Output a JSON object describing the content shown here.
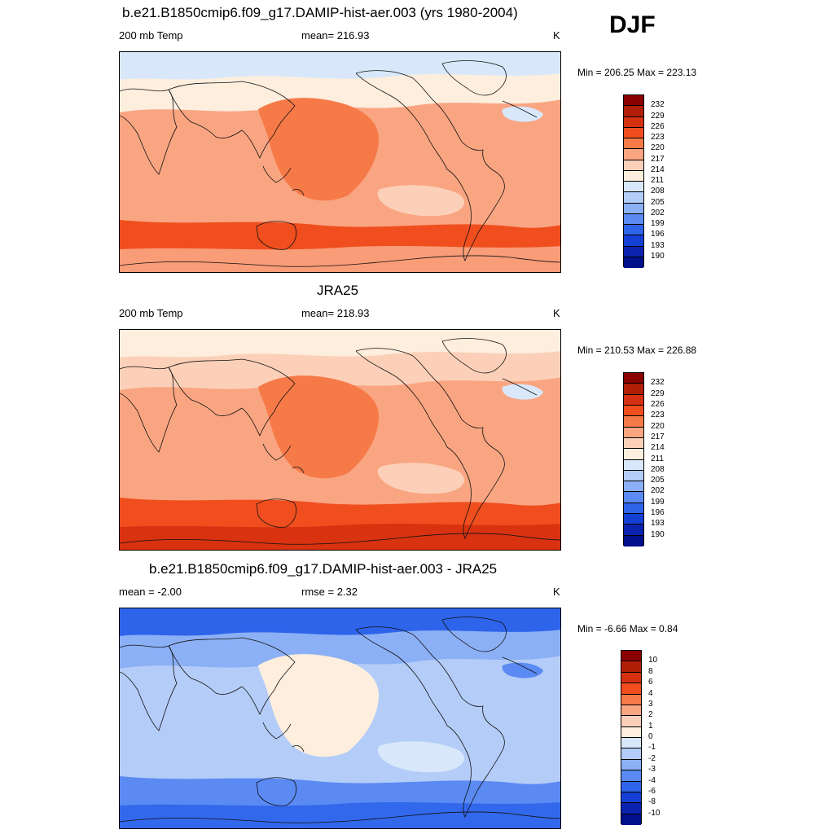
{
  "season": "DJF",
  "panels": [
    {
      "id": "model",
      "title": "b.e21.B1850cmip6.f09_g17.DAMIP-hist-aer.003 (yrs 1980-2004)",
      "left_label": "200 mb Temp",
      "center_label": "mean= 216.93",
      "units": "K",
      "minmax": "Min = 206.25 Max = 223.13",
      "colorbar": {
        "labels": [
          "232",
          "229",
          "226",
          "223",
          "220",
          "217",
          "214",
          "211",
          "208",
          "205",
          "202",
          "199",
          "196",
          "193",
          "190"
        ],
        "colors": [
          "#8b0000",
          "#b01e08",
          "#d53010",
          "#f04e1e",
          "#f67a48",
          "#f9a582",
          "#fcd0b8",
          "#fdeede",
          "#d8e8fa",
          "#b4ccf8",
          "#8cb0f6",
          "#5a8af2",
          "#2e64ea",
          "#1440d6",
          "#0a22ae",
          "#00108a"
        ]
      },
      "fills": {
        "polar_north": "#d8e8fa",
        "high_lat": "#fdeede",
        "mid": "#f9a582",
        "warm": "#f67a48",
        "south_band": "#f04e1e",
        "deep_south": "#f9a582",
        "cool": "#fcd0b8",
        "cold_spot": "#d8e8fa"
      }
    },
    {
      "id": "obs",
      "title": "JRA25",
      "left_label": "200 mb Temp",
      "center_label": "mean= 218.93",
      "units": "K",
      "minmax": "Min = 210.53 Max = 226.88",
      "colorbar": {
        "labels": [
          "232",
          "229",
          "226",
          "223",
          "220",
          "217",
          "214",
          "211",
          "208",
          "205",
          "202",
          "199",
          "196",
          "193",
          "190"
        ],
        "colors": [
          "#8b0000",
          "#b01e08",
          "#d53010",
          "#f04e1e",
          "#f67a48",
          "#f9a582",
          "#fcd0b8",
          "#fdeede",
          "#d8e8fa",
          "#b4ccf8",
          "#8cb0f6",
          "#5a8af2",
          "#2e64ea",
          "#1440d6",
          "#0a22ae",
          "#00108a"
        ]
      },
      "fills": {
        "polar_north": "#fdeede",
        "high_lat": "#fcd0b8",
        "mid": "#f9a582",
        "warm": "#f67a48",
        "south_band": "#f04e1e",
        "deep_south": "#d53010",
        "cool": "#fcd0b8",
        "cold_spot": "#d8e8fa"
      }
    },
    {
      "id": "diff",
      "title": "b.e21.B1850cmip6.f09_g17.DAMIP-hist-aer.003 - JRA25",
      "left_label": "mean =  -2.00",
      "center_label": "rmse =   2.32",
      "units": "K",
      "minmax": "Min =  -6.66 Max =   0.84",
      "colorbar": {
        "labels": [
          "10",
          "8",
          "6",
          "4",
          "3",
          "2",
          "1",
          "0",
          "-1",
          "-2",
          "-3",
          "-4",
          "-6",
          "-8",
          "-10"
        ],
        "colors": [
          "#8b0000",
          "#b01e08",
          "#d53010",
          "#f04e1e",
          "#f67a48",
          "#f9a582",
          "#fcd0b8",
          "#fdeede",
          "#d8e8fa",
          "#b4ccf8",
          "#8cb0f6",
          "#5a8af2",
          "#2e64ea",
          "#1440d6",
          "#0a22ae",
          "#00108a"
        ]
      },
      "fills": {
        "polar_north": "#2e64ea",
        "high_lat": "#8cb0f6",
        "mid": "#b4ccf8",
        "warm": "#fdeede",
        "south_band": "#5a8af2",
        "deep_south": "#2e64ea",
        "cool": "#d8e8fa",
        "cold_spot": "#5a8af2"
      }
    }
  ]
}
